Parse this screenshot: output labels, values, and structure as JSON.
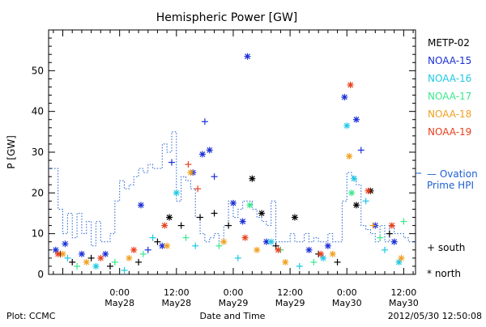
{
  "chart_data": {
    "type": "scatter",
    "title": "Hemispheric Power [GW]",
    "ylabel": "P [GW]",
    "xlabel": "Date and Time",
    "ylim": [
      0,
      60
    ],
    "yticks": [
      0,
      10,
      20,
      30,
      40,
      50
    ],
    "xlim": [
      "2012-05-27 09:00",
      "2012-05-30 14:30"
    ],
    "xticks": [
      {
        "t": "2012-05-28 00:00",
        "line1": "0:00",
        "line2": "May28"
      },
      {
        "t": "2012-05-28 12:00",
        "line1": "12:00",
        "line2": "May28"
      },
      {
        "t": "2012-05-29 00:00",
        "line1": "0:00",
        "line2": "May29"
      },
      {
        "t": "2012-05-29 12:00",
        "line1": "12:00",
        "line2": "May29"
      },
      {
        "t": "2012-05-30 00:00",
        "line1": "0:00",
        "line2": "May30"
      },
      {
        "t": "2012-05-30 12:00",
        "line1": "12:00",
        "line2": "May30"
      }
    ],
    "grid": false,
    "legend_position": "right",
    "legend_entries": [
      {
        "label": "METP-02",
        "color": "#000000"
      },
      {
        "label": "NOAA-15",
        "color": "#1a2fd6"
      },
      {
        "label": "NOAA-16",
        "color": "#1ec8e6"
      },
      {
        "label": "NOAA-17",
        "color": "#3ae88c"
      },
      {
        "label": "NOAA-18",
        "color": "#f0a020"
      },
      {
        "label": "NOAA-19",
        "color": "#e8401e"
      }
    ],
    "model_legend": {
      "line1": "— Ovation",
      "line2": "Prime HPI",
      "color": "#1e5fd0"
    },
    "marker_legend": [
      {
        "symbol": "+",
        "label": "south"
      },
      {
        "symbol": "*",
        "label": "north"
      }
    ],
    "ovation_hpi": {
      "name": "Ovation Prime HPI",
      "style": "dotted-step",
      "color": "#1e5fd0",
      "t": [
        "2012-05-27 09:00",
        "2012-05-27 10:00",
        "2012-05-27 11:00",
        "2012-05-27 12:00",
        "2012-05-27 13:00",
        "2012-05-27 14:00",
        "2012-05-27 15:00",
        "2012-05-27 16:00",
        "2012-05-27 17:00",
        "2012-05-27 18:00",
        "2012-05-27 19:00",
        "2012-05-27 20:00",
        "2012-05-27 21:00",
        "2012-05-27 22:00",
        "2012-05-27 23:00",
        "2012-05-28 00:00",
        "2012-05-28 01:00",
        "2012-05-28 02:00",
        "2012-05-28 03:00",
        "2012-05-28 04:00",
        "2012-05-28 05:00",
        "2012-05-28 06:00",
        "2012-05-28 07:00",
        "2012-05-28 08:00",
        "2012-05-28 09:00",
        "2012-05-28 10:00",
        "2012-05-28 11:00",
        "2012-05-28 12:00",
        "2012-05-28 13:00",
        "2012-05-28 14:00",
        "2012-05-28 15:00",
        "2012-05-28 16:00",
        "2012-05-28 17:00",
        "2012-05-28 18:00",
        "2012-05-28 19:00",
        "2012-05-28 20:00",
        "2012-05-28 21:00",
        "2012-05-28 22:00",
        "2012-05-28 23:00",
        "2012-05-29 00:00",
        "2012-05-29 01:00",
        "2012-05-29 02:00",
        "2012-05-29 03:00",
        "2012-05-29 04:00",
        "2012-05-29 05:00",
        "2012-05-29 06:00",
        "2012-05-29 07:00",
        "2012-05-29 08:00",
        "2012-05-29 09:00",
        "2012-05-29 10:00",
        "2012-05-29 11:00",
        "2012-05-29 12:00",
        "2012-05-29 13:00",
        "2012-05-29 14:00",
        "2012-05-29 15:00",
        "2012-05-29 16:00",
        "2012-05-29 17:00",
        "2012-05-29 18:00",
        "2012-05-29 19:00",
        "2012-05-29 20:00",
        "2012-05-29 21:00",
        "2012-05-29 22:00",
        "2012-05-29 23:00",
        "2012-05-30 00:00",
        "2012-05-30 01:00",
        "2012-05-30 02:00",
        "2012-05-30 03:00",
        "2012-05-30 04:00",
        "2012-05-30 05:00",
        "2012-05-30 06:00",
        "2012-05-30 07:00",
        "2012-05-30 08:00",
        "2012-05-30 09:00",
        "2012-05-30 10:00",
        "2012-05-30 11:00",
        "2012-05-30 12:00",
        "2012-05-30 13:00",
        "2012-05-30 14:00"
      ],
      "values": [
        26,
        26,
        16,
        10,
        15,
        9,
        15,
        10,
        13,
        7,
        13,
        8,
        8,
        10,
        18,
        23,
        21,
        22,
        24,
        26,
        25,
        27,
        26,
        26,
        32,
        30,
        35,
        18,
        24,
        23,
        21,
        14,
        10,
        8,
        9,
        10,
        8,
        12,
        18,
        14,
        16,
        18,
        18,
        16,
        14,
        13,
        12,
        18,
        8,
        8,
        8,
        10,
        8,
        8,
        10,
        8,
        9,
        8,
        8,
        10,
        8,
        8,
        18,
        25,
        24,
        22,
        12,
        11,
        10,
        8,
        12,
        8,
        12,
        10,
        10,
        9,
        8,
        8
      ]
    },
    "series": [
      {
        "name": "METP-02",
        "color": "#000000",
        "points": [
          {
            "t": "2012-05-27 11:30",
            "y": 5,
            "m": "+"
          },
          {
            "t": "2012-05-27 14:00",
            "y": 3,
            "m": "+"
          },
          {
            "t": "2012-05-27 18:00",
            "y": 4,
            "m": "+"
          },
          {
            "t": "2012-05-27 22:00",
            "y": 2,
            "m": "+"
          },
          {
            "t": "2012-05-28 04:00",
            "y": 3,
            "m": "+"
          },
          {
            "t": "2012-05-28 08:00",
            "y": 8,
            "m": "+"
          },
          {
            "t": "2012-05-28 10:30",
            "y": 14,
            "m": "*"
          },
          {
            "t": "2012-05-28 13:00",
            "y": 12,
            "m": "+"
          },
          {
            "t": "2012-05-28 17:00",
            "y": 14,
            "m": "+"
          },
          {
            "t": "2012-05-28 20:00",
            "y": 15,
            "m": "+"
          },
          {
            "t": "2012-05-28 23:00",
            "y": 12,
            "m": "+"
          },
          {
            "t": "2012-05-29 04:00",
            "y": 23.5,
            "m": "*"
          },
          {
            "t": "2012-05-29 06:00",
            "y": 15,
            "m": "*"
          },
          {
            "t": "2012-05-29 09:00",
            "y": 7,
            "m": "+"
          },
          {
            "t": "2012-05-29 13:00",
            "y": 14,
            "m": "*"
          },
          {
            "t": "2012-05-29 18:00",
            "y": 5,
            "m": "+"
          },
          {
            "t": "2012-05-29 22:00",
            "y": 3,
            "m": "+"
          },
          {
            "t": "2012-05-30 02:00",
            "y": 17,
            "m": "*"
          },
          {
            "t": "2012-05-30 05:00",
            "y": 20.5,
            "m": "*"
          },
          {
            "t": "2012-05-30 09:00",
            "y": 10,
            "m": "+"
          }
        ]
      },
      {
        "name": "NOAA-15",
        "color": "#1a2fd6",
        "points": [
          {
            "t": "2012-05-27 10:30",
            "y": 6,
            "m": "*"
          },
          {
            "t": "2012-05-27 12:30",
            "y": 7.5,
            "m": "*"
          },
          {
            "t": "2012-05-27 16:00",
            "y": 5,
            "m": "*"
          },
          {
            "t": "2012-05-27 21:00",
            "y": 5,
            "m": "*"
          },
          {
            "t": "2012-05-28 04:30",
            "y": 17,
            "m": "*"
          },
          {
            "t": "2012-05-28 06:00",
            "y": 6,
            "m": "+"
          },
          {
            "t": "2012-05-28 09:00",
            "y": 7,
            "m": "*"
          },
          {
            "t": "2012-05-28 11:00",
            "y": 27.5,
            "m": "+"
          },
          {
            "t": "2012-05-28 15:30",
            "y": 25,
            "m": "*"
          },
          {
            "t": "2012-05-28 17:30",
            "y": 29.5,
            "m": "*"
          },
          {
            "t": "2012-05-28 18:00",
            "y": 37.5,
            "m": "+"
          },
          {
            "t": "2012-05-28 19:00",
            "y": 30.5,
            "m": "*"
          },
          {
            "t": "2012-05-28 20:00",
            "y": 24,
            "m": "+"
          },
          {
            "t": "2012-05-29 00:00",
            "y": 17.5,
            "m": "*"
          },
          {
            "t": "2012-05-29 02:00",
            "y": 13,
            "m": "*"
          },
          {
            "t": "2012-05-29 03:00",
            "y": 53.5,
            "m": "*"
          },
          {
            "t": "2012-05-29 07:00",
            "y": 8,
            "m": "*"
          },
          {
            "t": "2012-05-29 16:00",
            "y": 6,
            "m": "*"
          },
          {
            "t": "2012-05-29 20:00",
            "y": 7,
            "m": "*"
          },
          {
            "t": "2012-05-29 23:30",
            "y": 43.5,
            "m": "*"
          },
          {
            "t": "2012-05-30 02:00",
            "y": 38,
            "m": "*"
          },
          {
            "t": "2012-05-30 03:00",
            "y": 30.5,
            "m": "+"
          },
          {
            "t": "2012-05-30 06:00",
            "y": 12,
            "m": "*"
          },
          {
            "t": "2012-05-30 10:00",
            "y": 8,
            "m": "*"
          }
        ]
      },
      {
        "name": "NOAA-16",
        "color": "#1ec8e6",
        "points": [
          {
            "t": "2012-05-27 13:00",
            "y": 4,
            "m": "+"
          },
          {
            "t": "2012-05-27 19:00",
            "y": 2,
            "m": "*"
          },
          {
            "t": "2012-05-28 01:00",
            "y": 1,
            "m": "+"
          },
          {
            "t": "2012-05-28 07:00",
            "y": 9,
            "m": "+"
          },
          {
            "t": "2012-05-28 12:00",
            "y": 20,
            "m": "*"
          },
          {
            "t": "2012-05-28 16:00",
            "y": 7,
            "m": "+"
          },
          {
            "t": "2012-05-29 01:00",
            "y": 4,
            "m": "+"
          },
          {
            "t": "2012-05-29 08:00",
            "y": 8,
            "m": "*"
          },
          {
            "t": "2012-05-29 14:00",
            "y": 2,
            "m": "+"
          },
          {
            "t": "2012-05-29 19:00",
            "y": 4,
            "m": "*"
          },
          {
            "t": "2012-05-30 00:00",
            "y": 36.5,
            "m": "*"
          },
          {
            "t": "2012-05-30 01:30",
            "y": 23.5,
            "m": "*"
          },
          {
            "t": "2012-05-30 04:00",
            "y": 18,
            "m": "+"
          },
          {
            "t": "2012-05-30 08:00",
            "y": 6,
            "m": "+"
          },
          {
            "t": "2012-05-30 11:00",
            "y": 3,
            "m": "*"
          }
        ]
      },
      {
        "name": "NOAA-17",
        "color": "#3ae88c",
        "points": [
          {
            "t": "2012-05-27 15:00",
            "y": 2,
            "m": "+"
          },
          {
            "t": "2012-05-27 23:00",
            "y": 3,
            "m": "+"
          },
          {
            "t": "2012-05-28 05:00",
            "y": 5,
            "m": "+"
          },
          {
            "t": "2012-05-28 14:00",
            "y": 9,
            "m": "+"
          },
          {
            "t": "2012-05-28 21:00",
            "y": 7,
            "m": "+"
          },
          {
            "t": "2012-05-29 03:30",
            "y": 17,
            "m": "*"
          },
          {
            "t": "2012-05-29 10:00",
            "y": 6,
            "m": "+"
          },
          {
            "t": "2012-05-29 17:00",
            "y": 3,
            "m": "+"
          },
          {
            "t": "2012-05-30 01:00",
            "y": 20,
            "m": "*"
          },
          {
            "t": "2012-05-30 07:00",
            "y": 9,
            "m": "+"
          },
          {
            "t": "2012-05-30 12:00",
            "y": 13,
            "m": "+"
          }
        ]
      },
      {
        "name": "NOAA-18",
        "color": "#f0a020",
        "points": [
          {
            "t": "2012-05-27 12:00",
            "y": 5,
            "m": "*"
          },
          {
            "t": "2012-05-27 17:00",
            "y": 3,
            "m": "*"
          },
          {
            "t": "2012-05-28 02:00",
            "y": 4,
            "m": "*"
          },
          {
            "t": "2012-05-28 10:00",
            "y": 7,
            "m": "*"
          },
          {
            "t": "2012-05-28 15:00",
            "y": 25,
            "m": "*"
          },
          {
            "t": "2012-05-28 22:00",
            "y": 8,
            "m": "*"
          },
          {
            "t": "2012-05-29 05:00",
            "y": 6,
            "m": "*"
          },
          {
            "t": "2012-05-29 11:00",
            "y": 3,
            "m": "*"
          },
          {
            "t": "2012-05-29 21:00",
            "y": 5,
            "m": "*"
          },
          {
            "t": "2012-05-30 00:30",
            "y": 29,
            "m": "*"
          },
          {
            "t": "2012-05-30 05:30",
            "y": 12,
            "m": "+"
          },
          {
            "t": "2012-05-30 11:30",
            "y": 4,
            "m": "*"
          }
        ]
      },
      {
        "name": "NOAA-19",
        "color": "#e8401e",
        "points": [
          {
            "t": "2012-05-27 11:00",
            "y": 5,
            "m": "*"
          },
          {
            "t": "2012-05-27 20:00",
            "y": 4,
            "m": "*"
          },
          {
            "t": "2012-05-28 03:00",
            "y": 6,
            "m": "*"
          },
          {
            "t": "2012-05-28 09:30",
            "y": 12,
            "m": "*"
          },
          {
            "t": "2012-05-28 14:30",
            "y": 27,
            "m": "+"
          },
          {
            "t": "2012-05-28 16:30",
            "y": 21,
            "m": "+"
          },
          {
            "t": "2012-05-29 02:30",
            "y": 9,
            "m": "*"
          },
          {
            "t": "2012-05-29 09:30",
            "y": 6,
            "m": "*"
          },
          {
            "t": "2012-05-29 18:30",
            "y": 5,
            "m": "*"
          },
          {
            "t": "2012-05-30 00:45",
            "y": 46.5,
            "m": "*"
          },
          {
            "t": "2012-05-30 04:30",
            "y": 20.5,
            "m": "*"
          },
          {
            "t": "2012-05-30 09:30",
            "y": 12,
            "m": "*"
          }
        ]
      }
    ]
  },
  "footer": {
    "plot_credit": "Plot: CCMC",
    "xlabel": "Date and Time",
    "timestamp": "2012/05/30 12:50:08"
  }
}
